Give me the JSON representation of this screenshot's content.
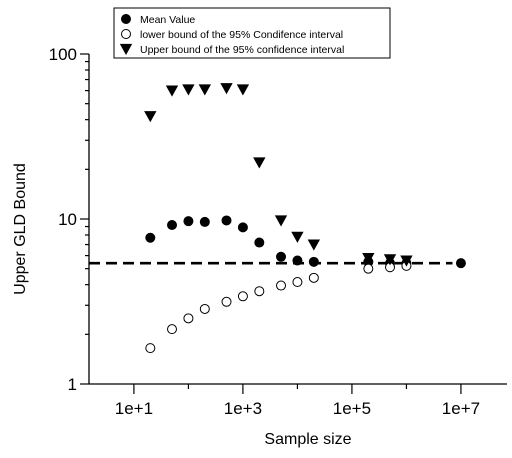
{
  "chart_data": {
    "type": "scatter",
    "title": "",
    "xlabel": "Sample size",
    "ylabel": "Upper GLD Bound",
    "x_scale": "log",
    "y_scale": "log",
    "xlim": [
      1.5,
      70000000
    ],
    "ylim": [
      1,
      100
    ],
    "x_ticks": [
      10,
      1000,
      100000,
      10000000
    ],
    "x_tick_labels": [
      "1e+1",
      "1e+3",
      "1e+5",
      "1e+7"
    ],
    "y_ticks": [
      1,
      10,
      100
    ],
    "y_tick_labels": [
      "1",
      "10",
      "100"
    ],
    "grid": false,
    "legend_position": "top-left",
    "reference_line": {
      "y": 5.4,
      "style": "dashed",
      "from_x": 1.5,
      "to_x": 7000000
    },
    "series": [
      {
        "name": "Mean Value",
        "marker": "filled-circle",
        "color": "#000000",
        "x": [
          20,
          50,
          100,
          200,
          500,
          1000,
          2000,
          5000,
          10000,
          20000,
          200000,
          500000,
          1000000,
          10000000
        ],
        "y": [
          7.7,
          9.2,
          9.7,
          9.6,
          9.8,
          8.9,
          7.2,
          5.9,
          5.6,
          5.5,
          5.5,
          5.4,
          5.4,
          5.4
        ]
      },
      {
        "name": "lower bound of the 95% Condifence interval",
        "marker": "open-circle",
        "color": "#000000",
        "x": [
          20,
          50,
          100,
          200,
          500,
          1000,
          2000,
          5000,
          10000,
          20000,
          200000,
          500000,
          1000000
        ],
        "y": [
          1.65,
          2.15,
          2.5,
          2.85,
          3.15,
          3.4,
          3.65,
          3.95,
          4.15,
          4.4,
          5.0,
          5.1,
          5.2
        ]
      },
      {
        "name": "Upper bound of the 95% confidence interval",
        "marker": "filled-triangle-down",
        "color": "#000000",
        "x": [
          20,
          50,
          100,
          200,
          500,
          1000,
          2000,
          5000,
          10000,
          20000,
          200000,
          500000,
          1000000
        ],
        "y": [
          42,
          60,
          61,
          61,
          62,
          61,
          22,
          9.8,
          7.8,
          7.0,
          5.8,
          5.7,
          5.6
        ]
      }
    ]
  }
}
